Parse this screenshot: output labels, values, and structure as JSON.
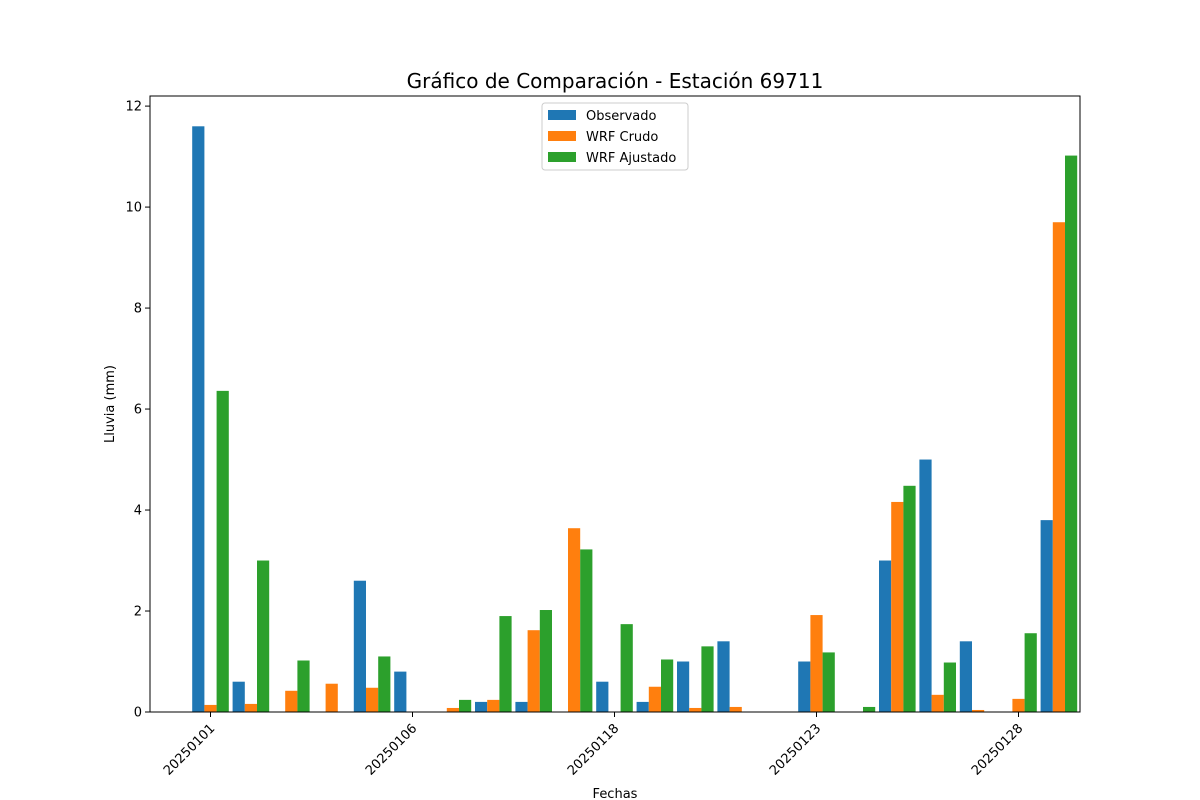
{
  "chart_data": {
    "type": "bar",
    "title": "Gráfico de Comparación - Estación 69711",
    "xlabel": "Fechas",
    "ylabel": "Lluvia (mm)",
    "ylim": [
      0,
      12.2
    ],
    "yticks": [
      "0",
      "2",
      "4",
      "6",
      "8",
      "10",
      "12"
    ],
    "xtick_labels": [
      "20250101",
      "20250106",
      "20250118",
      "20250123",
      "20250128"
    ],
    "xtick_at_group": [
      0,
      5,
      10,
      15,
      20
    ],
    "legend_position": "top-center",
    "grid": false,
    "series": [
      {
        "name": "Observado",
        "color": "#1f77b4",
        "values": [
          11.6,
          0.6,
          0.0,
          0.0,
          2.6,
          0.8,
          0.0,
          0.2,
          0.2,
          0.0,
          0.6,
          0.2,
          1.0,
          1.4,
          0.0,
          1.0,
          0.0,
          3.0,
          5.0,
          1.4,
          0.0,
          3.8
        ]
      },
      {
        "name": "WRF Crudo",
        "color": "#ff7f0e",
        "values": [
          0.14,
          0.16,
          0.42,
          0.56,
          0.48,
          0.0,
          0.08,
          0.24,
          1.62,
          3.64,
          0.0,
          0.5,
          0.08,
          0.1,
          0.0,
          1.92,
          0.0,
          4.16,
          0.34,
          0.04,
          0.26,
          9.7
        ]
      },
      {
        "name": "WRF Ajustado",
        "color": "#2ca02c",
        "values": [
          6.36,
          3.0,
          1.02,
          0.0,
          1.1,
          0.0,
          0.24,
          1.9,
          2.02,
          3.22,
          1.74,
          1.04,
          1.3,
          0.0,
          0.0,
          1.18,
          0.1,
          4.48,
          0.98,
          0.0,
          1.56,
          11.02
        ]
      }
    ]
  }
}
